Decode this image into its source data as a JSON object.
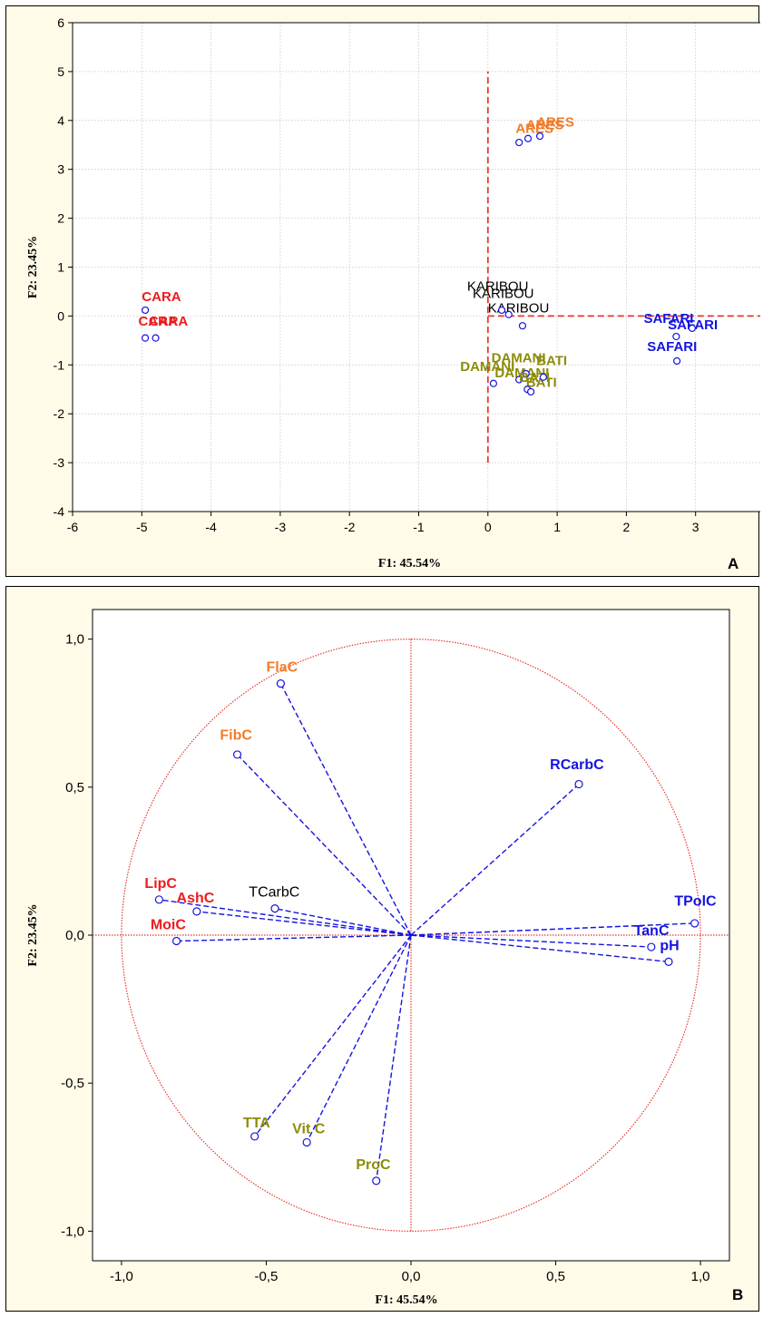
{
  "chart_data": [
    {
      "panel_label": "A",
      "type": "scatter",
      "xlabel": "F1: 45.54%",
      "ylabel": "F2: 23.45%",
      "xlim": [
        -6,
        4
      ],
      "ylim": [
        -4,
        6
      ],
      "x_ticks": [
        "-6",
        "-5",
        "-4",
        "-3",
        "-2",
        "-1",
        "0",
        "1",
        "2",
        "3",
        "4"
      ],
      "y_ticks": [
        "-4",
        "-3",
        "-2",
        "-1",
        "0",
        "1",
        "2",
        "3",
        "4",
        "5",
        "6"
      ],
      "grid": true,
      "reference_lines": {
        "x_from": 0,
        "y_from": -3,
        "y_to": 5,
        "color": "#e8372b"
      },
      "groups": [
        {
          "name": "CARA",
          "color": "#ee1c1c",
          "points": [
            [
              -4.95,
              0.12
            ],
            [
              -4.95,
              -0.45
            ],
            [
              -4.8,
              -0.45
            ]
          ],
          "labels": [
            [
              -5.0,
              0.3
            ],
            [
              -5.05,
              -0.2
            ],
            [
              -4.9,
              -0.2
            ]
          ]
        },
        {
          "name": "ARES",
          "color": "#f07c2a",
          "points": [
            [
              0.45,
              3.55
            ],
            [
              0.58,
              3.63
            ],
            [
              0.75,
              3.68
            ]
          ],
          "labels": [
            [
              0.4,
              3.75
            ],
            [
              0.55,
              3.82
            ],
            [
              0.7,
              3.88
            ]
          ]
        },
        {
          "name": "KARIBOU",
          "color": "#000000",
          "points": [
            [
              0.2,
              0.12
            ],
            [
              0.5,
              -0.2
            ],
            [
              0.3,
              0.03
            ]
          ],
          "labels": [
            [
              -0.3,
              0.52
            ],
            [
              -0.22,
              0.37
            ],
            [
              0.0,
              0.07
            ]
          ]
        },
        {
          "name": "DAMANI",
          "color": "#8c8c0a",
          "points": [
            [
              0.08,
              -1.38
            ],
            [
              0.55,
              -1.18
            ],
            [
              0.45,
              -1.3
            ]
          ],
          "labels": [
            [
              -0.4,
              -1.12
            ],
            [
              0.05,
              -0.95
            ],
            [
              0.1,
              -1.25
            ]
          ]
        },
        {
          "name": "BATI",
          "color": "#8c8c0a",
          "points": [
            [
              0.57,
              -1.5
            ],
            [
              0.62,
              -1.55
            ],
            [
              0.8,
              -1.25
            ]
          ],
          "labels": [
            [
              0.55,
              -1.45
            ],
            [
              0.7,
              -1.0
            ],
            [
              0.45,
              -1.35
            ]
          ]
        },
        {
          "name": "SAFARI",
          "color": "#1414e0",
          "points": [
            [
              2.73,
              -0.92
            ],
            [
              2.72,
              -0.42
            ],
            [
              2.95,
              -0.25
            ]
          ],
          "labels": [
            [
              2.3,
              -0.72
            ],
            [
              2.6,
              -0.27
            ],
            [
              2.25,
              -0.14
            ]
          ]
        }
      ]
    },
    {
      "panel_label": "B",
      "type": "scatter",
      "xlabel": "F1: 45.54%",
      "ylabel": "F2: 23.45%",
      "xlim": [
        -1.1,
        1.1
      ],
      "ylim": [
        -1.1,
        1.1
      ],
      "x_ticks": [
        "-1,0",
        "-0,5",
        "0,0",
        "0,5",
        "1,0"
      ],
      "y_ticks": [
        "-1,0",
        "-0,5",
        "0,0",
        "0,5",
        "1,0"
      ],
      "correlation_circle": true,
      "variables": [
        {
          "name": "FlaC",
          "x": -0.45,
          "y": 0.85,
          "color": "#f07c2a",
          "lx": -0.5,
          "ly": 0.89
        },
        {
          "name": "FibC",
          "x": -0.6,
          "y": 0.61,
          "color": "#f07c2a",
          "lx": -0.66,
          "ly": 0.66
        },
        {
          "name": "RCarbC",
          "x": 0.58,
          "y": 0.51,
          "color": "#1414e0",
          "lx": 0.48,
          "ly": 0.56
        },
        {
          "name": "LipC",
          "x": -0.87,
          "y": 0.12,
          "color": "#ee1c1c",
          "lx": -0.92,
          "ly": 0.16
        },
        {
          "name": "AshC",
          "x": -0.74,
          "y": 0.08,
          "color": "#ee1c1c",
          "lx": -0.81,
          "ly": 0.11
        },
        {
          "name": "TCarbC",
          "x": -0.47,
          "y": 0.09,
          "color": "#000000",
          "lx": -0.56,
          "ly": 0.13
        },
        {
          "name": "MoiC",
          "x": -0.81,
          "y": -0.02,
          "color": "#ee1c1c",
          "lx": -0.9,
          "ly": 0.02
        },
        {
          "name": "TPolC",
          "x": 0.98,
          "y": 0.04,
          "color": "#1414e0",
          "lx": 0.91,
          "ly": 0.1
        },
        {
          "name": "TanC",
          "x": 0.83,
          "y": -0.04,
          "color": "#1414e0",
          "lx": 0.77,
          "ly": 0.0
        },
        {
          "name": "pH",
          "x": 0.89,
          "y": -0.09,
          "color": "#1414e0",
          "lx": 0.86,
          "ly": -0.05
        },
        {
          "name": "TTA",
          "x": -0.54,
          "y": -0.68,
          "color": "#8c8c0a",
          "lx": -0.58,
          "ly": -0.65
        },
        {
          "name": "Vit C",
          "x": -0.36,
          "y": -0.7,
          "color": "#8c8c0a",
          "lx": -0.41,
          "ly": -0.67
        },
        {
          "name": "ProC",
          "x": -0.12,
          "y": -0.83,
          "color": "#8c8c0a",
          "lx": -0.19,
          "ly": -0.79
        }
      ]
    }
  ]
}
